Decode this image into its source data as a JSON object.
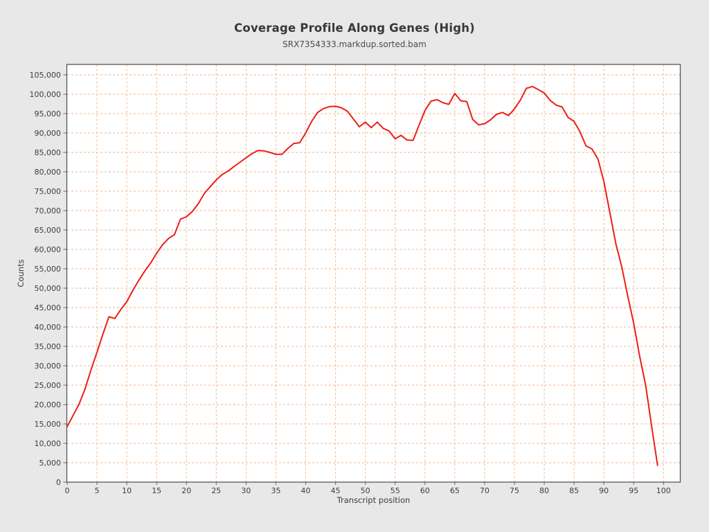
{
  "window": {
    "background_color": "#e8e8e8"
  },
  "chart_data": {
    "type": "line",
    "title": "Coverage Profile Along Genes (High)",
    "subtitle": "SRX7354333.markdup.sorted.bam",
    "xlabel": "Transcript position",
    "ylabel": "Counts",
    "xlim": [
      0,
      102.8
    ],
    "ylim": [
      0,
      107800
    ],
    "x_tick_step": 5,
    "y_tick_step": 5000,
    "x_tick_labels": [
      "0",
      "5",
      "10",
      "15",
      "20",
      "25",
      "30",
      "35",
      "40",
      "45",
      "50",
      "55",
      "60",
      "65",
      "70",
      "75",
      "80",
      "85",
      "90",
      "95",
      "100"
    ],
    "x_tick_values": [
      0,
      5,
      10,
      15,
      20,
      25,
      30,
      35,
      40,
      45,
      50,
      55,
      60,
      65,
      70,
      75,
      80,
      85,
      90,
      95,
      100
    ],
    "y_tick_labels": [
      "0",
      "5,000",
      "10,000",
      "15,000",
      "20,000",
      "25,000",
      "30,000",
      "35,000",
      "40,000",
      "45,000",
      "50,000",
      "55,000",
      "60,000",
      "65,000",
      "70,000",
      "75,000",
      "80,000",
      "85,000",
      "90,000",
      "95,000",
      "100,000",
      "105,000"
    ],
    "y_tick_values": [
      0,
      5000,
      10000,
      15000,
      20000,
      25000,
      30000,
      35000,
      40000,
      45000,
      50000,
      55000,
      60000,
      65000,
      70000,
      75000,
      80000,
      85000,
      90000,
      95000,
      100000,
      105000
    ],
    "grid": {
      "on": true,
      "color": "#f3b283",
      "dash": "3,3"
    },
    "plot_background": "#ffffff",
    "frame_color": "#545454",
    "tick_color": "#666666",
    "label_color": "#3c3c3c",
    "legend": "none",
    "series": [
      {
        "name": "coverage",
        "color": "#ee1c16",
        "x_start": 0,
        "x": [
          0,
          1,
          2,
          3,
          4,
          5,
          6,
          7,
          8,
          9,
          10,
          11,
          12,
          13,
          14,
          15,
          16,
          17,
          18,
          19,
          20,
          21,
          22,
          23,
          24,
          25,
          26,
          27,
          28,
          29,
          30,
          31,
          32,
          33,
          34,
          35,
          36,
          37,
          38,
          39,
          40,
          41,
          42,
          43,
          44,
          45,
          46,
          47,
          48,
          49,
          50,
          51,
          52,
          53,
          54,
          55,
          56,
          57,
          58,
          59,
          60,
          61,
          62,
          63,
          64,
          65,
          66,
          67,
          68,
          69,
          70,
          71,
          72,
          73,
          74,
          75,
          76,
          77,
          78,
          79,
          80,
          81,
          82,
          83,
          84,
          85,
          86,
          87,
          88,
          89,
          90,
          91,
          92,
          93,
          94,
          95,
          96,
          97,
          98,
          99
        ],
        "values": [
          14300,
          17200,
          20100,
          24000,
          29000,
          33500,
          38200,
          42600,
          42200,
          44500,
          46500,
          49400,
          52000,
          54400,
          56500,
          59000,
          61200,
          62800,
          63800,
          67800,
          68400,
          69800,
          71800,
          74400,
          76200,
          77900,
          79300,
          80200,
          81400,
          82500,
          83600,
          84700,
          85500,
          85400,
          85000,
          84500,
          84500,
          86000,
          87300,
          87500,
          90000,
          93000,
          95300,
          96300,
          96800,
          96900,
          96500,
          95600,
          93600,
          91600,
          92800,
          91400,
          92800,
          91200,
          90500,
          88500,
          89400,
          88200,
          88100,
          92000,
          95800,
          98200,
          98600,
          97800,
          97400,
          100200,
          98300,
          98100,
          93500,
          92100,
          92400,
          93400,
          94800,
          95300,
          94500,
          96200,
          98500,
          101500,
          102000,
          101200,
          100300,
          98400,
          97200,
          96700,
          94000,
          93000,
          90300,
          86700,
          85900,
          83300,
          77500,
          69500,
          61500,
          55500,
          48000,
          41000,
          32500,
          25000,
          14500,
          4300
        ]
      }
    ]
  }
}
